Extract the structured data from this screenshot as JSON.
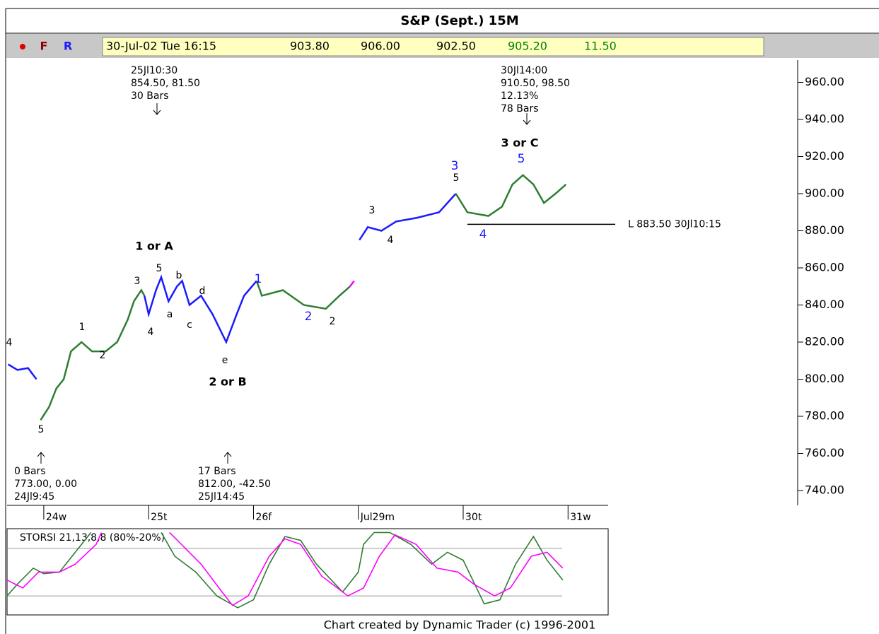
{
  "header": {
    "title": "S&P (Sept.) 15M",
    "buttons": [
      "F",
      "R"
    ],
    "fields": [
      "30-Jul-02 Tue 16:15",
      "903.80",
      "906.00",
      "902.50",
      "905.20",
      "11.50"
    ]
  },
  "footer": "Chart created by Dynamic Trader (c) 1996-2001",
  "chart_data": [
    {
      "type": "line",
      "xlim": [
        -0.35,
        7.19
      ],
      "ylim": [
        732,
        972
      ],
      "xticks": [
        {
          "value": 0,
          "label": "24w"
        },
        {
          "value": 1,
          "label": "25t"
        },
        {
          "value": 2,
          "label": "26f"
        },
        {
          "value": 3,
          "label": "Jul29m"
        },
        {
          "value": 4,
          "label": "30t"
        },
        {
          "value": 5,
          "label": "31w"
        }
      ],
      "yticks": [
        {
          "value": 960,
          "label": "960.00"
        },
        {
          "value": 940,
          "label": "940.00"
        },
        {
          "value": 920,
          "label": "920.00"
        },
        {
          "value": 900,
          "label": "900.00"
        },
        {
          "value": 880,
          "label": "880.00"
        },
        {
          "value": 860,
          "label": "860.00"
        },
        {
          "value": 840,
          "label": "840.00"
        },
        {
          "value": 820,
          "label": "820.00"
        },
        {
          "value": 800,
          "label": "800.00"
        },
        {
          "value": 780,
          "label": "780.00"
        },
        {
          "value": 760,
          "label": "760.00"
        },
        {
          "value": 740,
          "label": "740.00"
        }
      ],
      "series": [
        {
          "color": "#1a1aff",
          "x": [
            -0.34,
            -0.25,
            -0.15,
            -0.07,
            null,
            0.96,
            1.0,
            1.07,
            1.12,
            1.19,
            1.27,
            1.32,
            1.39,
            1.5,
            1.61,
            1.74,
            1.84,
            1.91,
            2.03,
            null,
            3.01,
            3.09,
            3.22,
            3.36,
            3.56,
            3.77,
            3.93
          ],
          "values": [
            808,
            805,
            806,
            800,
            null,
            845,
            835,
            848,
            855,
            842,
            850,
            853,
            840,
            845,
            835,
            820,
            835,
            845,
            853,
            null,
            875,
            882,
            880,
            885,
            887,
            890,
            900
          ]
        },
        {
          "color": "#2e7d32",
          "x": [
            -0.03,
            0.05,
            0.12,
            0.19,
            0.26,
            0.36,
            0.46,
            0.59,
            0.7,
            0.8,
            0.86,
            0.93,
            0.96,
            null,
            2.03,
            2.08,
            2.28,
            2.48,
            2.69,
            2.82,
            2.92,
            null,
            3.93,
            4.04,
            4.24,
            4.37,
            4.47,
            4.57,
            4.67,
            4.77,
            4.88,
            4.98
          ],
          "values": [
            778,
            785,
            795,
            800,
            815,
            820,
            815,
            815,
            820,
            832,
            842,
            848,
            845,
            null,
            853,
            845,
            848,
            840,
            838,
            845,
            850,
            null,
            900,
            890,
            888,
            893,
            905,
            910,
            905,
            895,
            900,
            905
          ]
        },
        {
          "color": "#ff00ff",
          "x": [
            2.92,
            2.96
          ],
          "values": [
            850,
            853
          ]
        }
      ],
      "low_line": {
        "value": 883.5,
        "label": "L 883.50 30Jl10:15",
        "xlim": [
          4.04,
          5.45
        ]
      },
      "annotations": [
        "25Jl10:30",
        "854.50, 81.50",
        "30 Bars",
        "30Jl14:00",
        "910.50, 98.50",
        "12.13%",
        "78 Bars",
        "3 or C",
        "5",
        "3",
        "5",
        "3",
        "4",
        "4",
        "1 or A",
        "5",
        "b",
        "3",
        "d",
        "a",
        "c",
        "4",
        "1",
        "2",
        "2",
        "1",
        "2",
        "4",
        "e",
        "2 or B",
        "5",
        "0 Bars",
        "773.00, 0.00",
        "24Jl9:45",
        "17 Bars",
        "812.00, -42.50",
        "25Jl14:45"
      ]
    },
    {
      "type": "line",
      "title": "STORSI 21,13,8,8 (80%-20%)",
      "xlim": [
        -0.35,
        7.19
      ],
      "ylim": [
        -4,
        103
      ],
      "levels": [
        80,
        20
      ],
      "series": [
        {
          "color": "#2e7d32",
          "x": [
            -0.35,
            -0.25,
            -0.1,
            0.0,
            0.15,
            0.3,
            0.45,
            null,
            1.12,
            1.25,
            1.45,
            1.65,
            1.85,
            2.0,
            2.15,
            2.3,
            2.45,
            2.6,
            2.85,
            3.0,
            3.05,
            3.15,
            3.3,
            3.5,
            3.7,
            3.85,
            4.0,
            4.2,
            4.35,
            4.5,
            4.67,
            4.8,
            4.95
          ],
          "values": [
            20,
            35,
            55,
            48,
            50,
            75,
            100,
            null,
            100,
            70,
            50,
            20,
            5,
            15,
            60,
            95,
            90,
            60,
            25,
            50,
            85,
            100,
            100,
            85,
            60,
            75,
            65,
            10,
            15,
            60,
            95,
            65,
            40
          ]
        },
        {
          "color": "#ff00ff",
          "x": [
            -0.35,
            -0.2,
            -0.05,
            0.15,
            0.3,
            0.5,
            0.55,
            null,
            1.2,
            1.35,
            1.5,
            1.7,
            1.8,
            1.95,
            2.15,
            2.3,
            2.45,
            2.65,
            2.9,
            3.05,
            3.2,
            3.35,
            3.55,
            3.75,
            3.95,
            4.1,
            4.3,
            4.45,
            4.65,
            4.8,
            4.95
          ],
          "values": [
            40,
            30,
            50,
            50,
            60,
            85,
            100,
            null,
            100,
            80,
            60,
            25,
            8,
            20,
            70,
            92,
            85,
            45,
            20,
            30,
            70,
            97,
            85,
            55,
            50,
            35,
            20,
            30,
            70,
            75,
            55
          ]
        }
      ]
    }
  ]
}
